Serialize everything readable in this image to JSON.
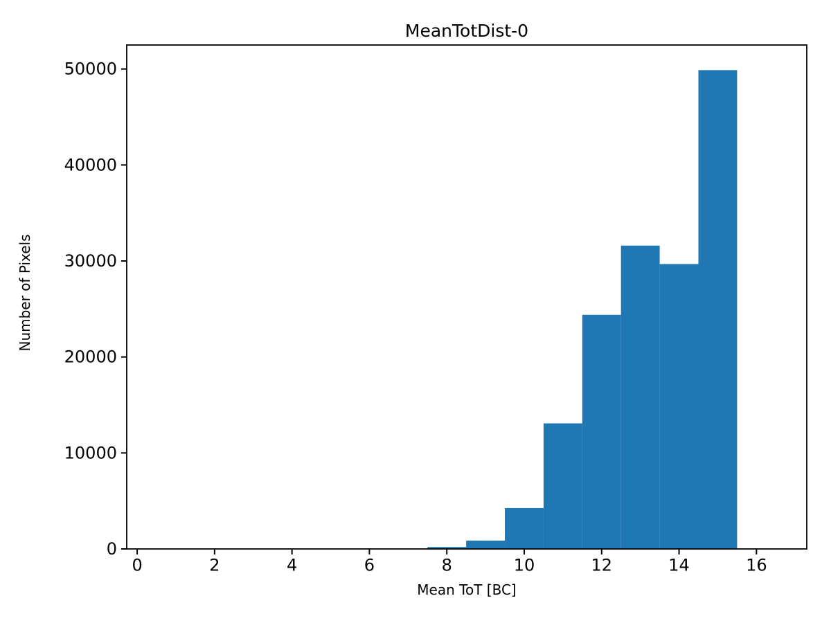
{
  "figure": {
    "background": "#ffffff"
  },
  "chart_data": {
    "type": "bar",
    "subtype": "histogram",
    "title": "MeanTotDist-0",
    "xlabel": "Mean ToT [BC]",
    "ylabel": "Number of Pixels",
    "bin_edges": [
      7.5,
      8.5,
      9.5,
      10.5,
      11.5,
      12.5,
      13.5,
      14.5,
      15.5
    ],
    "bin_centers": [
      8,
      9,
      10,
      11,
      12,
      13,
      14,
      15
    ],
    "values": [
      200,
      870,
      4260,
      13080,
      24390,
      31600,
      29680,
      49880
    ],
    "xticks": [
      0,
      2,
      4,
      6,
      8,
      10,
      12,
      14,
      16
    ],
    "yticks": [
      0,
      10000,
      20000,
      30000,
      40000,
      50000
    ],
    "xtick_labels": [
      "0",
      "2",
      "4",
      "6",
      "8",
      "10",
      "12",
      "14",
      "16"
    ],
    "ytick_labels": [
      "0",
      "10000",
      "20000",
      "30000",
      "40000",
      "50000"
    ],
    "xlim": [
      -0.27,
      17.3
    ],
    "ylim": [
      0,
      52500
    ],
    "bar_color": "#1f77b4",
    "axis_color": "#000000",
    "grid": false,
    "legend_position": "none"
  }
}
